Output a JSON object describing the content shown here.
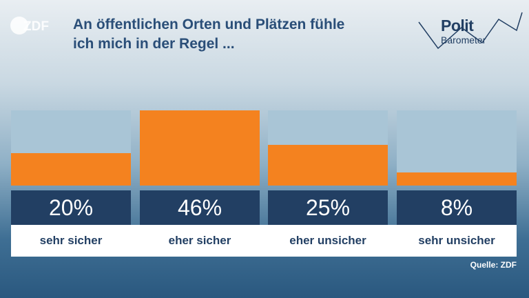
{
  "header": {
    "logo_text": "ZDF",
    "title_line1": "An öffentlichen Orten und Plätzen fühle",
    "title_line2": "ich mich in der Regel ..."
  },
  "brand": {
    "polit": "Polit",
    "barometer": "Barometer"
  },
  "footer": {
    "source": "Quelle: ZDF"
  },
  "colors": {
    "bar": "#f4821f",
    "track": "#a9c5d6",
    "value_box": "#223f63",
    "title": "#2a4e78"
  },
  "chart_data": {
    "type": "bar",
    "title": "An öffentlichen Orten und Plätzen fühle ich mich in der Regel ...",
    "categories": [
      "sehr sicher",
      "eher sicher",
      "eher unsicher",
      "sehr unsicher"
    ],
    "values": [
      20,
      46,
      25,
      8
    ],
    "value_labels": [
      "20%",
      "46%",
      "25%",
      "8%"
    ],
    "unit": "%",
    "ylim": [
      0,
      46
    ],
    "grid": false,
    "legend": "none"
  }
}
